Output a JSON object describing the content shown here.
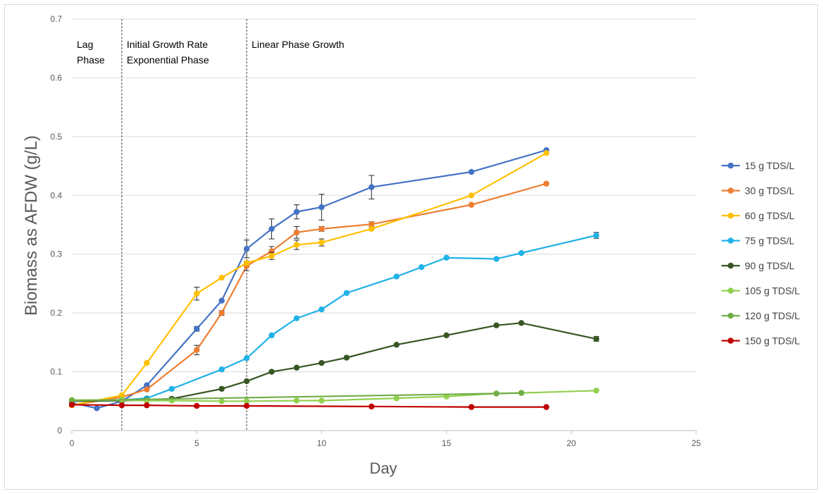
{
  "chart_data": {
    "type": "line",
    "title": "",
    "xlabel": "Day",
    "ylabel": "Biomass as AFDW (g/L)",
    "xlim": [
      0,
      25
    ],
    "ylim": [
      0,
      0.7
    ],
    "x_ticks": [
      "0",
      "5",
      "10",
      "15",
      "20",
      "25"
    ],
    "y_ticks": [
      "0",
      "0.1",
      "0.2",
      "0.3",
      "0.4",
      "0.5",
      "0.6",
      "0.7"
    ],
    "grid": "horizontal",
    "legend_position": "right",
    "phase_lines": [
      2,
      7
    ],
    "phase_labels": [
      {
        "lines": [
          "Lag",
          "Phase"
        ],
        "x_start": 0
      },
      {
        "lines": [
          "Initial Growth Rate",
          "Exponential Phase"
        ],
        "x_start": 2
      },
      {
        "lines": [
          "Linear Phase Growth"
        ],
        "x_start": 7
      }
    ],
    "series": [
      {
        "name": "15 g TDS/L",
        "color": "#4472C4",
        "x": [
          0,
          1,
          2,
          3,
          5,
          6,
          7,
          8,
          9,
          10,
          12,
          16,
          19
        ],
        "y": [
          0.047,
          0.038,
          0.05,
          0.077,
          0.173,
          0.221,
          0.309,
          0.343,
          0.372,
          0.38,
          0.414,
          0.44,
          0.477
        ],
        "err": [
          0,
          0,
          0,
          0,
          0.004,
          0,
          0.015,
          0.017,
          0.012,
          0.022,
          0.02,
          0,
          0
        ]
      },
      {
        "name": "30 g TDS/L",
        "color": "#ED7D31",
        "x": [
          0,
          2,
          3,
          5,
          6,
          7,
          8,
          9,
          10,
          12,
          16,
          19
        ],
        "y": [
          0.043,
          0.057,
          0.07,
          0.137,
          0.2,
          0.28,
          0.305,
          0.337,
          0.343,
          0.351,
          0.384,
          0.42
        ],
        "err": [
          0,
          0,
          0,
          0.008,
          0.004,
          0.008,
          0.008,
          0.01,
          0.004,
          0.004,
          0,
          0
        ]
      },
      {
        "name": "60 g TDS/L",
        "color": "#FFC000",
        "x": [
          0,
          2,
          3,
          5,
          6,
          7,
          8,
          9,
          10,
          12,
          16,
          19
        ],
        "y": [
          0.043,
          0.06,
          0.115,
          0.233,
          0.26,
          0.285,
          0.297,
          0.316,
          0.32,
          0.343,
          0.4,
          0.472
        ],
        "err": [
          0,
          0,
          0,
          0.011,
          0,
          0,
          0.006,
          0.008,
          0.006,
          0,
          0,
          0
        ]
      },
      {
        "name": "75 g TDS/L",
        "color": "#20B2E8",
        "x": [
          0,
          2,
          3,
          4,
          6,
          7,
          8,
          9,
          10,
          11,
          13,
          14,
          15,
          17,
          18,
          21
        ],
        "y": [
          0.05,
          0.052,
          0.055,
          0.071,
          0.104,
          0.123,
          0.162,
          0.191,
          0.206,
          0.234,
          0.262,
          0.278,
          0.294,
          0.292,
          0.302,
          0.332
        ],
        "err": [
          0,
          0,
          0,
          0,
          0,
          0,
          0,
          0,
          0,
          0,
          0,
          0,
          0,
          0,
          0,
          0.005
        ]
      },
      {
        "name": "90 g TDS/L",
        "color": "#375623",
        "x": [
          0,
          2,
          3,
          4,
          6,
          7,
          8,
          9,
          10,
          11,
          13,
          15,
          17,
          18,
          21
        ],
        "y": [
          0.05,
          0.051,
          0.052,
          0.054,
          0.071,
          0.084,
          0.1,
          0.107,
          0.115,
          0.124,
          0.146,
          0.162,
          0.179,
          0.183,
          0.156
        ],
        "err": [
          0,
          0,
          0,
          0,
          0,
          0,
          0,
          0,
          0,
          0,
          0,
          0,
          0,
          0,
          0.004
        ]
      },
      {
        "name": "105 g TDS/L",
        "color": "#92D050",
        "x": [
          0,
          2,
          3,
          4,
          6,
          7,
          9,
          10,
          13,
          15,
          17,
          18,
          21
        ],
        "y": [
          0.052,
          0.052,
          0.051,
          0.051,
          0.05,
          0.05,
          0.051,
          0.051,
          0.055,
          0.058,
          0.063,
          0.064,
          0.068
        ],
        "err": [
          0,
          0,
          0,
          0,
          0,
          0,
          0,
          0,
          0,
          0,
          0,
          0,
          0
        ]
      },
      {
        "name": "120 g TDS/L",
        "color": "#70AD47",
        "x": [
          0,
          17,
          18
        ],
        "y": [
          0.051,
          0.063,
          0.064
        ],
        "err": [
          0,
          0,
          0
        ]
      },
      {
        "name": "150 g TDS/L",
        "color": "#C00000",
        "x": [
          0,
          2,
          3,
          5,
          7,
          12,
          16,
          19
        ],
        "y": [
          0.044,
          0.043,
          0.043,
          0.042,
          0.042,
          0.041,
          0.04,
          0.04
        ],
        "err": [
          0,
          0,
          0,
          0,
          0,
          0,
          0,
          0
        ]
      }
    ]
  }
}
